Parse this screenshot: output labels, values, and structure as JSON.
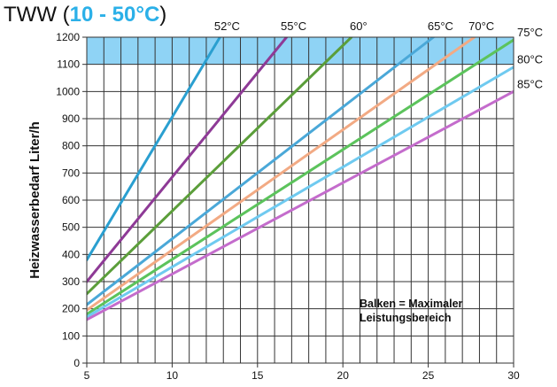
{
  "title": {
    "prefix": "TWW",
    "open_paren": "(",
    "range_start": "10",
    "dash": " - ",
    "range_end": "50°C",
    "close_paren": ")"
  },
  "colors": {
    "accent": "#2bb0e8",
    "band": "#8fd3f5",
    "grid": "#333333"
  },
  "chart_data": {
    "type": "line",
    "title": "TWW (10 - 50°C)",
    "xlabel": "",
    "ylabel": "Heizwasserbedarf Liter/h",
    "xlim": [
      5,
      30
    ],
    "ylim": [
      0,
      1200
    ],
    "x_ticks": [
      5,
      10,
      15,
      20,
      25,
      30
    ],
    "y_ticks": [
      0,
      100,
      200,
      300,
      400,
      500,
      600,
      700,
      800,
      900,
      1000,
      1100,
      1200
    ],
    "grid": true,
    "highlight_band": {
      "y_from": 1100,
      "y_to": 1200
    },
    "annotation": [
      "Balken = Maximaler",
      "Leistungsbereich"
    ],
    "series": [
      {
        "name": "52°C",
        "color": "#2a9fd0",
        "points": [
          [
            5,
            380
          ],
          [
            12.8,
            1200
          ]
        ]
      },
      {
        "name": "55°C",
        "color": "#8e3a96",
        "points": [
          [
            5,
            300
          ],
          [
            16.7,
            1200
          ]
        ]
      },
      {
        "name": "60°",
        "color": "#5b9e3a",
        "points": [
          [
            5,
            255
          ],
          [
            20.5,
            1200
          ]
        ]
      },
      {
        "name": "65°C",
        "color": "#4aa8d8",
        "points": [
          [
            5,
            215
          ],
          [
            25.3,
            1200
          ]
        ]
      },
      {
        "name": "70°C",
        "color": "#f2aa84",
        "points": [
          [
            5,
            195
          ],
          [
            27.7,
            1200
          ]
        ]
      },
      {
        "name": "75°C",
        "color": "#5cc35c",
        "points": [
          [
            5,
            180
          ],
          [
            30,
            1190
          ]
        ]
      },
      {
        "name": "80°C",
        "color": "#6fcaf0",
        "points": [
          [
            5,
            170
          ],
          [
            30,
            1090
          ]
        ]
      },
      {
        "name": "85°C",
        "color": "#c46ccc",
        "points": [
          [
            5,
            160
          ],
          [
            30,
            1000
          ]
        ]
      }
    ]
  }
}
